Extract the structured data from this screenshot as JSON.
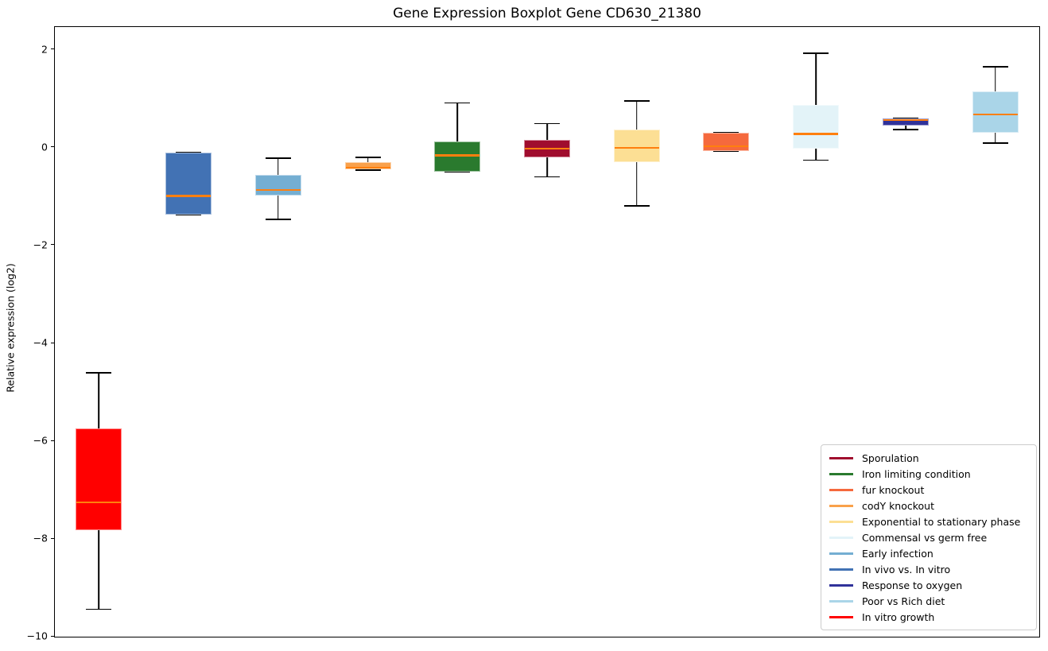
{
  "title": "Gene Expression Boxplot Gene CD630_21380",
  "ylabel": "Relative expression (log2)",
  "chart_data": {
    "type": "boxplot",
    "title": "Gene Expression Boxplot Gene CD630_21380",
    "ylabel": "Relative expression (log2)",
    "xlabel": "",
    "ylim": [
      -10.03,
      2.47
    ],
    "yticks": [
      {
        "value": 2,
        "label": "2"
      },
      {
        "value": 0,
        "label": "0"
      },
      {
        "value": -2,
        "label": "−2"
      },
      {
        "value": -4,
        "label": "−4"
      },
      {
        "value": -6,
        "label": "−6"
      },
      {
        "value": -8,
        "label": "−8"
      },
      {
        "value": -10,
        "label": "−10"
      }
    ],
    "grid": false,
    "median_color": "#ff7f0e",
    "whisker_color": "#000000",
    "legend_position": "lower right",
    "boxes": [
      {
        "name": "In vitro growth",
        "color": "#ff0000",
        "whisker_low": -9.45,
        "q1": -7.84,
        "median": -7.27,
        "q3": -5.76,
        "whisker_high": -4.62
      },
      {
        "name": "In vivo vs. In vitro",
        "color": "#4272b4",
        "whisker_low": -1.39,
        "q1": -1.39,
        "median": -1.0,
        "q3": -0.11,
        "whisker_high": -0.11
      },
      {
        "name": "Early infection",
        "color": "#74aed2",
        "whisker_low": -1.48,
        "q1": -0.99,
        "median": -0.88,
        "q3": -0.57,
        "whisker_high": -0.23
      },
      {
        "name": "codY knockout",
        "color": "#f9a14b",
        "whisker_low": -0.47,
        "q1": -0.46,
        "median": -0.42,
        "q3": -0.31,
        "whisker_high": -0.21
      },
      {
        "name": "Iron limiting condition",
        "color": "#2a7a2e",
        "whisker_low": -0.5,
        "q1": -0.5,
        "median": -0.17,
        "q3": 0.11,
        "whisker_high": 0.9
      },
      {
        "name": "Sporulation",
        "color": "#a00d2e",
        "whisker_low": -0.61,
        "q1": -0.21,
        "median": -0.03,
        "q3": 0.15,
        "whisker_high": 0.48
      },
      {
        "name": "Exponential to stationary phase",
        "color": "#fcdf94",
        "whisker_low": -1.2,
        "q1": -0.31,
        "median": -0.02,
        "q3": 0.36,
        "whisker_high": 0.94
      },
      {
        "name": "fur knockout",
        "color": "#f5693d",
        "whisker_low": -0.08,
        "q1": -0.08,
        "median": 0.02,
        "q3": 0.29,
        "whisker_high": 0.29
      },
      {
        "name": "Commensal vs germ free",
        "color": "#e3f3f8",
        "whisker_low": -0.27,
        "q1": -0.03,
        "median": 0.27,
        "q3": 0.86,
        "whisker_high": 1.92
      },
      {
        "name": "Response to oxygen",
        "color": "#30329a",
        "whisker_low": 0.36,
        "q1": 0.44,
        "median": 0.55,
        "q3": 0.58,
        "whisker_high": 0.58
      },
      {
        "name": "Poor vs Rich diet",
        "color": "#aad5e8",
        "whisker_low": 0.08,
        "q1": 0.29,
        "median": 0.67,
        "q3": 1.14,
        "whisker_high": 1.64
      }
    ],
    "legend": [
      {
        "label": "Sporulation",
        "color": "#a00d2e"
      },
      {
        "label": "Iron limiting condition",
        "color": "#2a7a2e"
      },
      {
        "label": "fur knockout",
        "color": "#f5693d"
      },
      {
        "label": "codY knockout",
        "color": "#f9a14b"
      },
      {
        "label": "Exponential to stationary phase",
        "color": "#fcdf94"
      },
      {
        "label": "Commensal vs germ free",
        "color": "#e3f3f8"
      },
      {
        "label": "Early infection",
        "color": "#74aed2"
      },
      {
        "label": "In vivo vs. In vitro",
        "color": "#4272b4"
      },
      {
        "label": "Response to oxygen",
        "color": "#30329a"
      },
      {
        "label": "Poor vs Rich diet",
        "color": "#aad5e8"
      },
      {
        "label": "In vitro growth",
        "color": "#ff0000"
      }
    ]
  }
}
